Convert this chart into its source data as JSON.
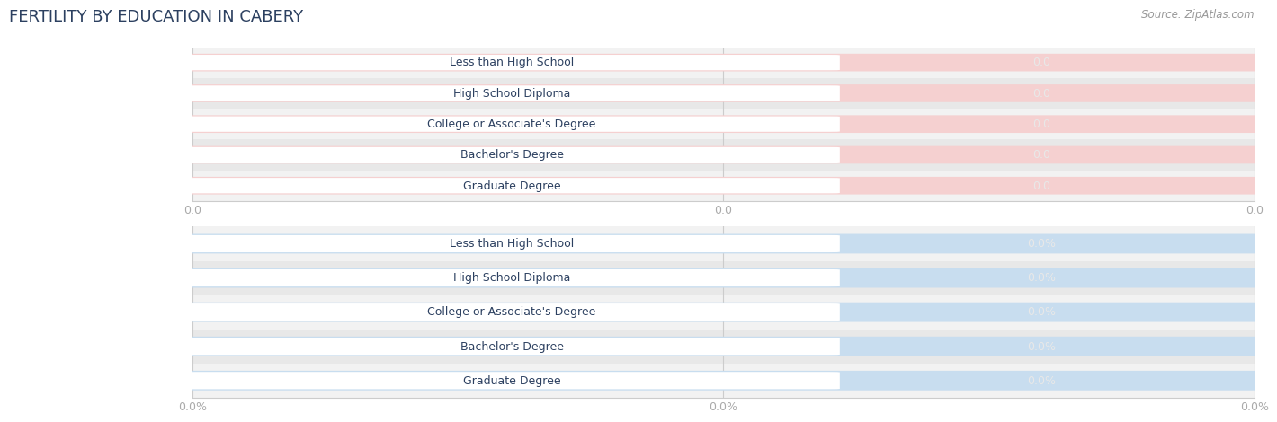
{
  "title": "FERTILITY BY EDUCATION IN CABERY",
  "source_text": "Source: ZipAtlas.com",
  "categories": [
    "Less than High School",
    "High School Diploma",
    "College or Associate's Degree",
    "Bachelor's Degree",
    "Graduate Degree"
  ],
  "top_values": [
    0.0,
    0.0,
    0.0,
    0.0,
    0.0
  ],
  "bottom_values": [
    0.0,
    0.0,
    0.0,
    0.0,
    0.0
  ],
  "top_bar_color": "#f0a0a0",
  "bottom_bar_color": "#a0bcd8",
  "top_track_color": "#f5d0d0",
  "bottom_track_color": "#c8ddef",
  "row_bg_colors": [
    "#f2f2f2",
    "#e8e8e8"
  ],
  "white_label_bg": "#ffffff",
  "title_color": "#2c4060",
  "value_text_color": "#f0f0f0",
  "label_text_color": "#2c4060",
  "tick_color": "#aaaaaa",
  "top_xtick_labels": [
    "0.0",
    "0.0",
    "0.0"
  ],
  "bottom_xtick_labels": [
    "0.0%",
    "0.0%",
    "0.0%"
  ],
  "top_value_fmt": "0.0",
  "bottom_value_fmt": "0.0%",
  "figsize": [
    14.06,
    4.76
  ],
  "dpi": 100
}
